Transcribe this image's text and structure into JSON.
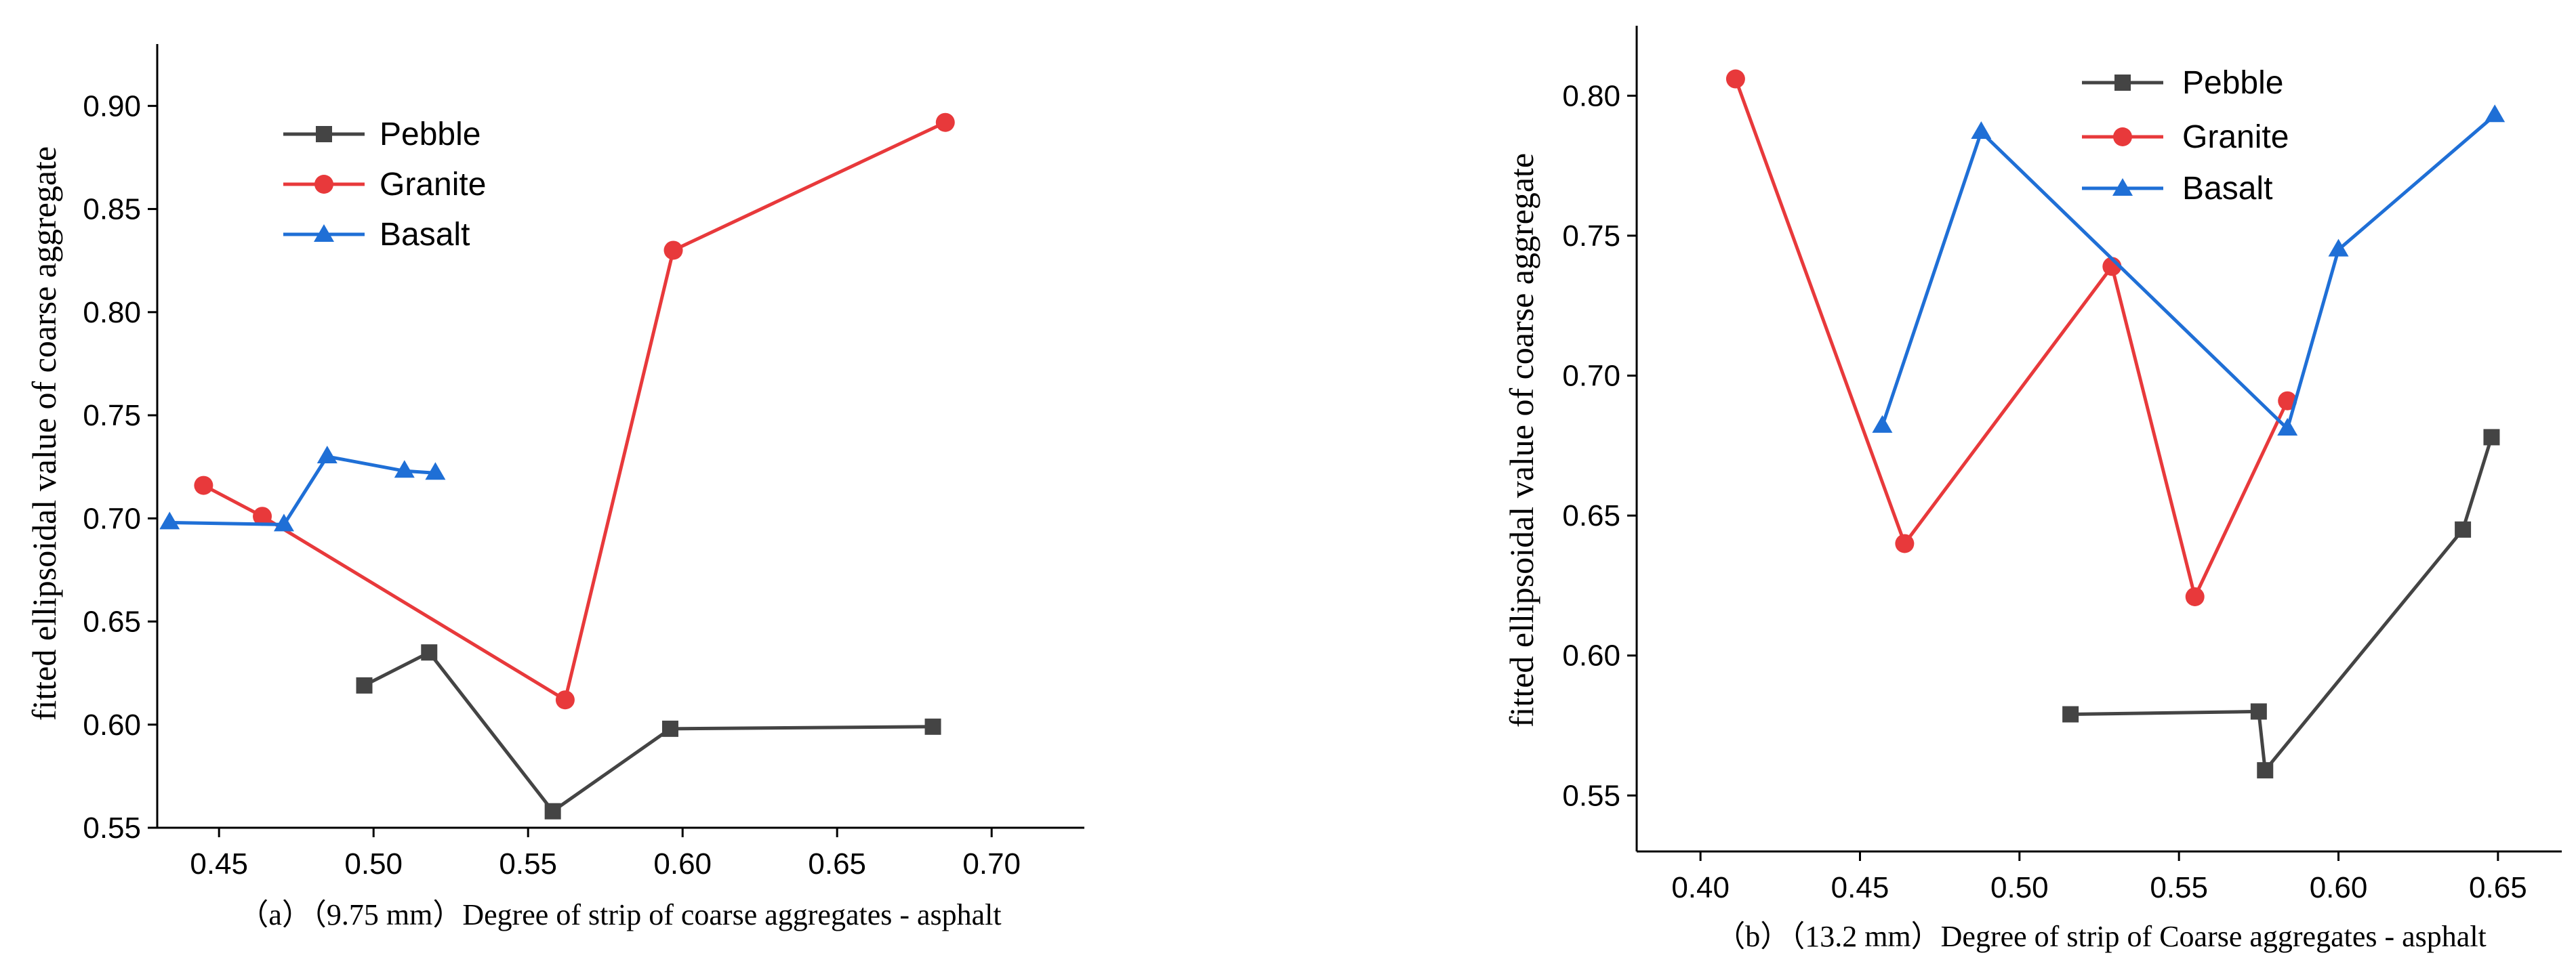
{
  "colors": {
    "Pebble": "#444444",
    "Granite": "#e8393b",
    "Basalt": "#1f6fd6"
  },
  "chart_data": [
    {
      "type": "line",
      "caption": "（a）（9.75 mm）Degree of strip of coarse aggregates - asphalt",
      "ylabel": "fitted ellipsoidal value of coarse aggregate",
      "xlabel": "",
      "xlim": [
        0.43,
        0.73
      ],
      "ylim": [
        0.55,
        0.93
      ],
      "xticks": [
        0.45,
        0.5,
        0.55,
        0.6,
        0.65,
        0.7
      ],
      "xtick_labels": [
        "0.45",
        "0.50",
        "0.55",
        "0.60",
        "0.65",
        "0.70"
      ],
      "yticks": [
        0.55,
        0.6,
        0.65,
        0.7,
        0.75,
        0.8,
        0.85,
        0.9
      ],
      "ytick_labels": [
        "0.55",
        "0.60",
        "0.65",
        "0.70",
        "0.75",
        "0.80",
        "0.85",
        "0.90"
      ],
      "legend_position": "top-left",
      "series": [
        {
          "name": "Pebble",
          "marker": "square",
          "x": [
            0.497,
            0.518,
            0.558,
            0.596,
            0.681
          ],
          "y": [
            0.619,
            0.635,
            0.558,
            0.598,
            0.599
          ]
        },
        {
          "name": "Granite",
          "marker": "circle",
          "x": [
            0.445,
            0.464,
            0.562,
            0.597,
            0.685
          ],
          "y": [
            0.716,
            0.701,
            0.612,
            0.83,
            0.892
          ]
        },
        {
          "name": "Basalt",
          "marker": "triangle",
          "x": [
            0.434,
            0.471,
            0.485,
            0.51,
            0.52
          ],
          "y": [
            0.698,
            0.697,
            0.73,
            0.723,
            0.722
          ]
        }
      ]
    },
    {
      "type": "line",
      "caption": "（b）（13.2 mm）Degree of strip of Coarse aggregates - asphalt",
      "ylabel": "fitted ellipsoidal value of coarse aggregate",
      "xlabel": "",
      "xlim": [
        0.38,
        0.67
      ],
      "ylim": [
        0.53,
        0.825
      ],
      "xticks": [
        0.4,
        0.45,
        0.5,
        0.55,
        0.6,
        0.65
      ],
      "xtick_labels": [
        "0.40",
        "0.45",
        "0.50",
        "0.55",
        "0.60",
        "0.65"
      ],
      "yticks": [
        0.55,
        0.6,
        0.65,
        0.7,
        0.75,
        0.8
      ],
      "ytick_labels": [
        "0.55",
        "0.60",
        "0.65",
        "0.70",
        "0.75",
        "0.80"
      ],
      "legend_position": "top-center",
      "series": [
        {
          "name": "Pebble",
          "marker": "square",
          "x": [
            0.516,
            0.575,
            0.577,
            0.639,
            0.648
          ],
          "y": [
            0.579,
            0.58,
            0.559,
            0.645,
            0.678
          ]
        },
        {
          "name": "Granite",
          "marker": "circle",
          "x": [
            0.411,
            0.464,
            0.529,
            0.555,
            0.584
          ],
          "y": [
            0.806,
            0.64,
            0.739,
            0.621,
            0.691
          ]
        },
        {
          "name": "Basalt",
          "marker": "triangle",
          "x": [
            0.457,
            0.488,
            0.584,
            0.6,
            0.649
          ],
          "y": [
            0.682,
            0.787,
            0.681,
            0.745,
            0.793
          ]
        }
      ]
    }
  ]
}
